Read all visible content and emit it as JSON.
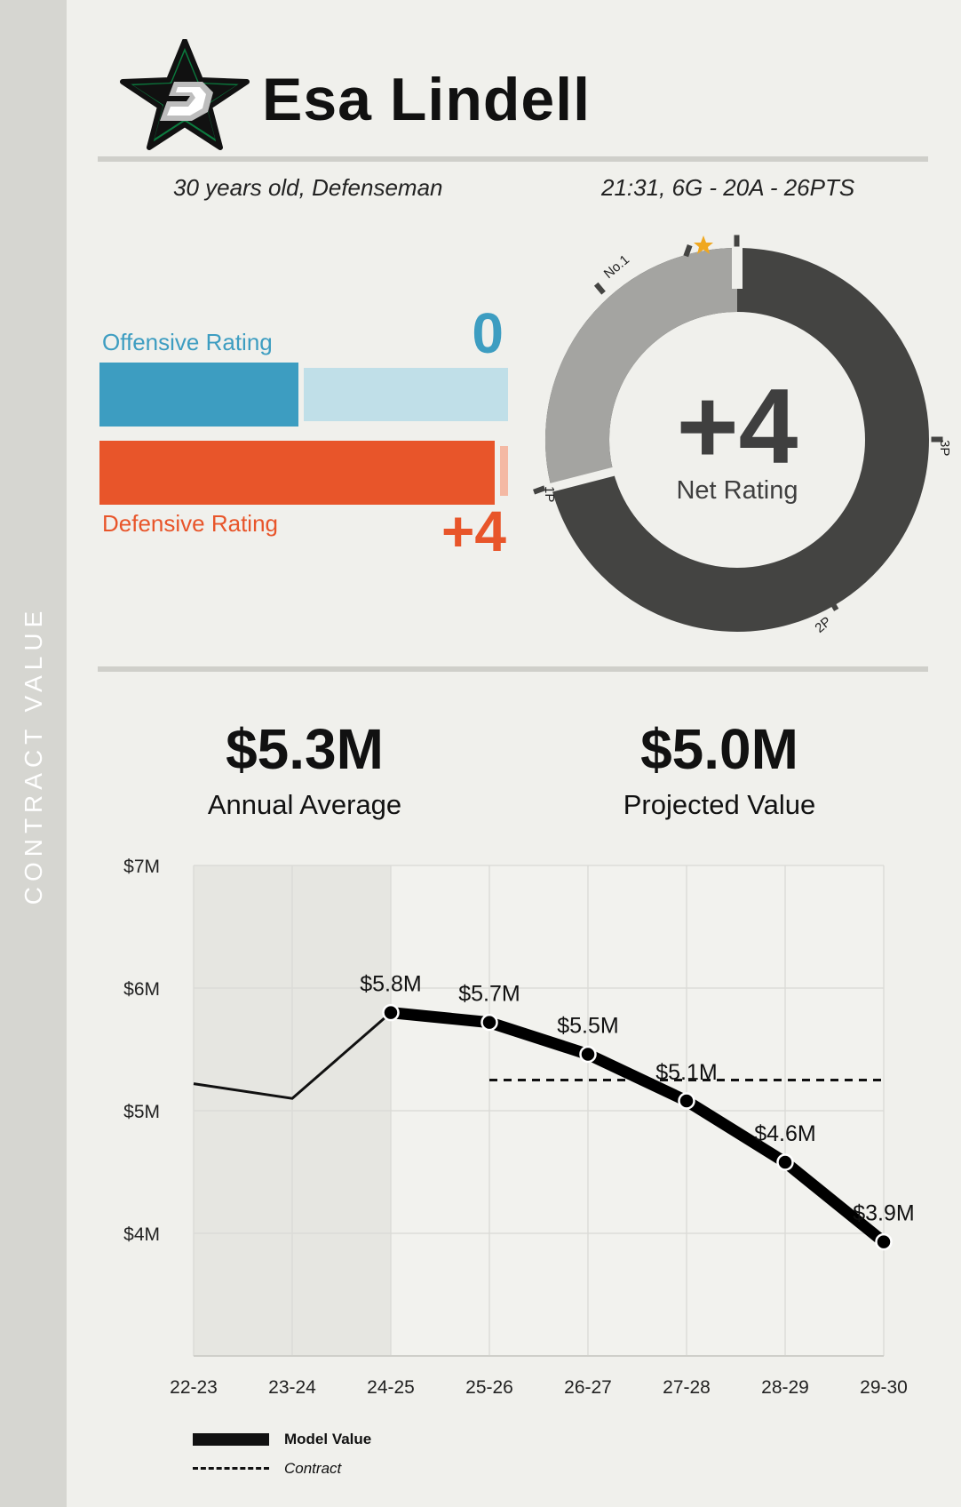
{
  "sidebar": {
    "label": "CONTRACT VALUE"
  },
  "header": {
    "player_name": "Esa Lindell",
    "team_logo": "dallas-stars-logo",
    "bio": "30 years old, Defenseman",
    "stats_line": "21:31, 6G - 20A - 26PTS"
  },
  "ratings": {
    "offensive_label": "Offensive Rating",
    "offensive_value": "0",
    "offensive_fill": 0.5,
    "defensive_label": "Defensive Rating",
    "defensive_value": "+4",
    "defensive_fill": 0.98,
    "colors": {
      "offensive": "#3d9dc1",
      "offensive_light": "#c0dfe8",
      "defensive": "#e8552a",
      "defensive_light": "#f4b9a4"
    }
  },
  "net_rating": {
    "value": "+4",
    "label": "Net Rating",
    "markers": {
      "p1": "1P",
      "p2": "2P",
      "p3": "3P",
      "no1": "No.1"
    },
    "fill_fraction": 0.71,
    "colors": {
      "main": "#444442",
      "secondary": "#a4a4a1",
      "star": "#f0a820"
    }
  },
  "contract": {
    "annual_average": "$5.3M",
    "annual_average_label": "Annual Average",
    "projected_value": "$5.0M",
    "projected_value_label": "Projected Value"
  },
  "legend": {
    "model_value": "Model Value",
    "contract": "Contract"
  },
  "chart_data": {
    "type": "line",
    "categories": [
      "22-23",
      "23-24",
      "24-25",
      "25-26",
      "26-27",
      "27-28",
      "28-29",
      "29-30"
    ],
    "ylim": [
      3.0,
      7.0
    ],
    "yticks": [
      4,
      5,
      6,
      7
    ],
    "ytick_labels": [
      "$4M",
      "$5M",
      "$6M",
      "$7M"
    ],
    "shaded_categories": [
      "22-23",
      "23-24"
    ],
    "series": [
      {
        "name": "Model Value",
        "values": [
          5.22,
          5.1,
          5.8,
          5.72,
          5.46,
          5.08,
          4.58,
          3.93
        ],
        "labels": [
          null,
          null,
          "$5.8M",
          "$5.7M",
          "$5.5M",
          "$5.1M",
          "$4.6M",
          "$3.9M"
        ]
      },
      {
        "name": "Contract",
        "start": "25-26",
        "end": "29-30",
        "value": 5.25
      }
    ]
  }
}
